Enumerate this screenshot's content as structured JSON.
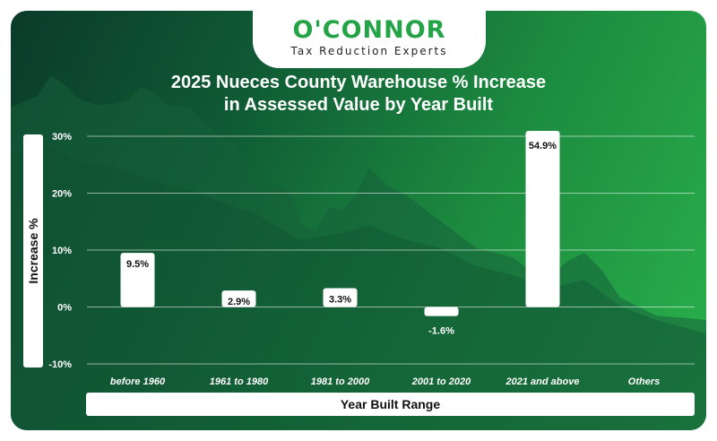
{
  "brand": {
    "name": "O'CONNOR",
    "tagline": "Tax Reduction Experts"
  },
  "colors": {
    "brand_green": "#24a347",
    "background_dark": "#0b3b2a",
    "background_light": "#2bb24c",
    "bar_fill": "#ffffff"
  },
  "chart_data": {
    "type": "bar",
    "title_line1": "2025 Nueces County Warehouse % Increase",
    "title_line2": "in Assessed Value by Year Built",
    "xlabel": "Year Built Range",
    "ylabel": "Increase %",
    "categories": [
      "before 1960",
      "1961 to 1980",
      "1981 to 2000",
      "2001 to 2020",
      "2021 and above",
      "Others"
    ],
    "values": [
      9.5,
      2.9,
      3.3,
      -1.6,
      54.9,
      null
    ],
    "value_labels": [
      "9.5%",
      "2.9%",
      "3.3%",
      "-1.6%",
      "54.9%",
      ""
    ],
    "ylim": [
      -10,
      30
    ],
    "yticks": [
      -10,
      0,
      10,
      20,
      30
    ],
    "ytick_labels": [
      "-10%",
      "0%",
      "10%",
      "20%",
      "30%"
    ],
    "grid": true
  }
}
